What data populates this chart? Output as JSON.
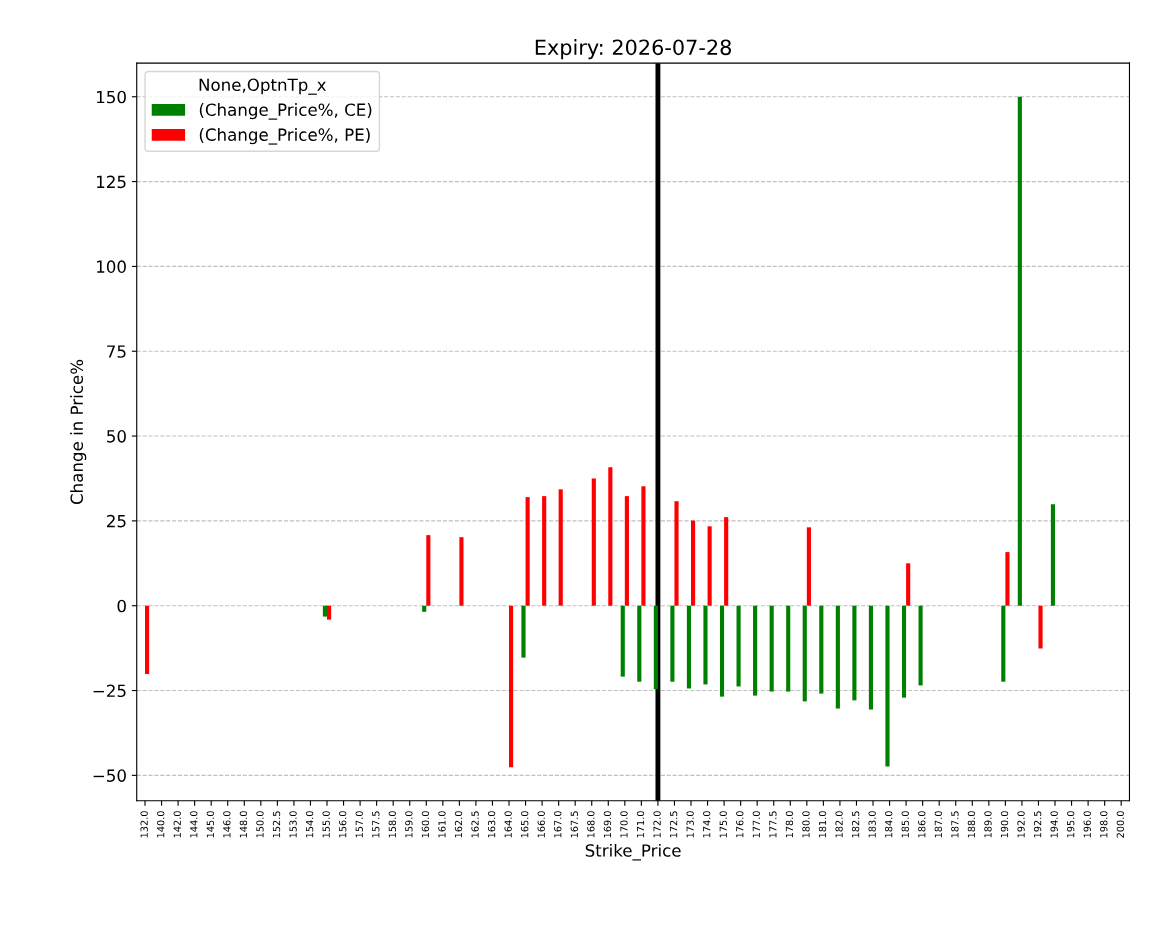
{
  "chart_data": {
    "type": "bar",
    "title": "Expiry: 2026-07-28",
    "xlabel": "Strike_Price",
    "ylabel": "Change in Price%",
    "legend_title": "None,OptnTp_x",
    "categories": [
      "132.0",
      "140.0",
      "142.0",
      "144.0",
      "145.0",
      "146.0",
      "148.0",
      "150.0",
      "152.5",
      "153.0",
      "154.0",
      "155.0",
      "156.0",
      "157.0",
      "157.5",
      "158.0",
      "159.0",
      "160.0",
      "161.0",
      "162.0",
      "162.5",
      "163.0",
      "164.0",
      "165.0",
      "166.0",
      "167.0",
      "167.5",
      "168.0",
      "169.0",
      "170.0",
      "171.0",
      "172.0",
      "172.5",
      "173.0",
      "174.0",
      "175.0",
      "176.0",
      "177.0",
      "177.5",
      "178.0",
      "180.0",
      "181.0",
      "182.0",
      "182.5",
      "183.0",
      "184.0",
      "185.0",
      "186.0",
      "187.0",
      "187.5",
      "188.0",
      "189.0",
      "190.0",
      "192.0",
      "192.5",
      "194.0",
      "195.0",
      "196.0",
      "198.0",
      "200.0"
    ],
    "series": [
      {
        "name": "(Change_Price%, CE)",
        "color": "#008000",
        "values": [
          null,
          null,
          null,
          null,
          null,
          null,
          null,
          null,
          null,
          null,
          null,
          -3.2,
          null,
          null,
          null,
          null,
          null,
          -1.8,
          null,
          null,
          null,
          null,
          null,
          -15.3,
          null,
          null,
          null,
          null,
          null,
          -20.9,
          -22.4,
          -24.6,
          -22.4,
          -24.4,
          -23.2,
          -26.8,
          -23.8,
          -26.5,
          -25.3,
          -25.3,
          -28.2,
          -25.9,
          -30.3,
          -27.9,
          -30.6,
          -47.4,
          -27.1,
          -23.5,
          null,
          null,
          null,
          null,
          -22.4,
          150,
          null,
          29.9,
          null,
          null,
          null,
          null
        ]
      },
      {
        "name": "(Change_Price%, PE)",
        "color": "#ff0000",
        "values": [
          -20.1,
          null,
          null,
          null,
          null,
          null,
          null,
          null,
          null,
          null,
          null,
          -4.1,
          null,
          null,
          null,
          null,
          null,
          20.8,
          null,
          20.2,
          null,
          null,
          -47.6,
          32.0,
          32.3,
          34.3,
          null,
          37.5,
          40.8,
          32.3,
          35.2,
          null,
          30.8,
          25.1,
          23.4,
          26.1,
          null,
          null,
          null,
          null,
          23.1,
          null,
          null,
          null,
          null,
          null,
          12.5,
          null,
          null,
          null,
          null,
          null,
          15.8,
          null,
          -12.6,
          null,
          null,
          null,
          null,
          null
        ]
      }
    ],
    "ylim": [
      -57.5,
      159.9
    ],
    "yticks": [
      -50,
      -25,
      0,
      25,
      50,
      75,
      100,
      125,
      150
    ],
    "grid": "y",
    "legend": "top left",
    "ref_lines": [
      {
        "axis": "x",
        "value": "172.0",
        "color": "#000000"
      }
    ]
  }
}
